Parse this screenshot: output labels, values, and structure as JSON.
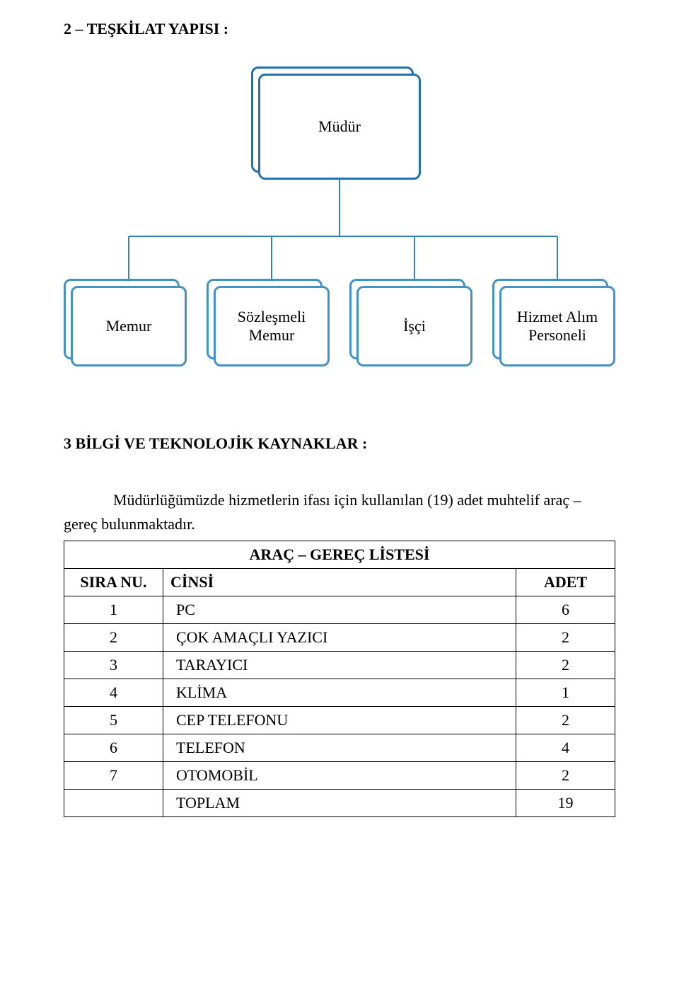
{
  "section2_title": "2 – TEŞKİLAT YAPISI :",
  "org": {
    "root": {
      "label": "Müdür",
      "border_color": "#2171b5"
    },
    "child_border_color": "#4292c6",
    "connector_color": "#3182bd",
    "connector_width": 2,
    "children": [
      {
        "label": "Memur"
      },
      {
        "label": "Sözleşmeli Memur"
      },
      {
        "label": "İşçi"
      },
      {
        "label": "Hizmet Alım Personeli"
      }
    ]
  },
  "section3_title": "3 BİLGİ VE TEKNOLOJİK KAYNAKLAR :",
  "paragraph": "Müdürlüğümüzde hizmetlerin ifası için kullanılan (19) adet muhtelif araç – gereç bulunmaktadır.",
  "table": {
    "title": "ARAÇ – GEREÇ LİSTESİ",
    "columns": {
      "sira": "SIRA NU.",
      "cinsi": "CİNSİ",
      "adet": "ADET"
    },
    "rows": [
      {
        "sira": "1",
        "cinsi": "PC",
        "adet": "6"
      },
      {
        "sira": "2",
        "cinsi": "ÇOK AMAÇLI YAZICI",
        "adet": "2"
      },
      {
        "sira": "3",
        "cinsi": "TARAYICI",
        "adet": "2"
      },
      {
        "sira": "4",
        "cinsi": "KLİMA",
        "adet": "1"
      },
      {
        "sira": "5",
        "cinsi": "CEP TELEFONU",
        "adet": "2"
      },
      {
        "sira": "6",
        "cinsi": "TELEFON",
        "adet": "4"
      },
      {
        "sira": "7",
        "cinsi": "OTOMOBİL",
        "adet": "2"
      }
    ],
    "total": {
      "label": "TOPLAM",
      "value": "19"
    }
  },
  "fonts": {
    "body_size_pt": 16
  },
  "colors": {
    "page_bg": "#ffffff",
    "text": "#000000",
    "table_border": "#000000"
  }
}
